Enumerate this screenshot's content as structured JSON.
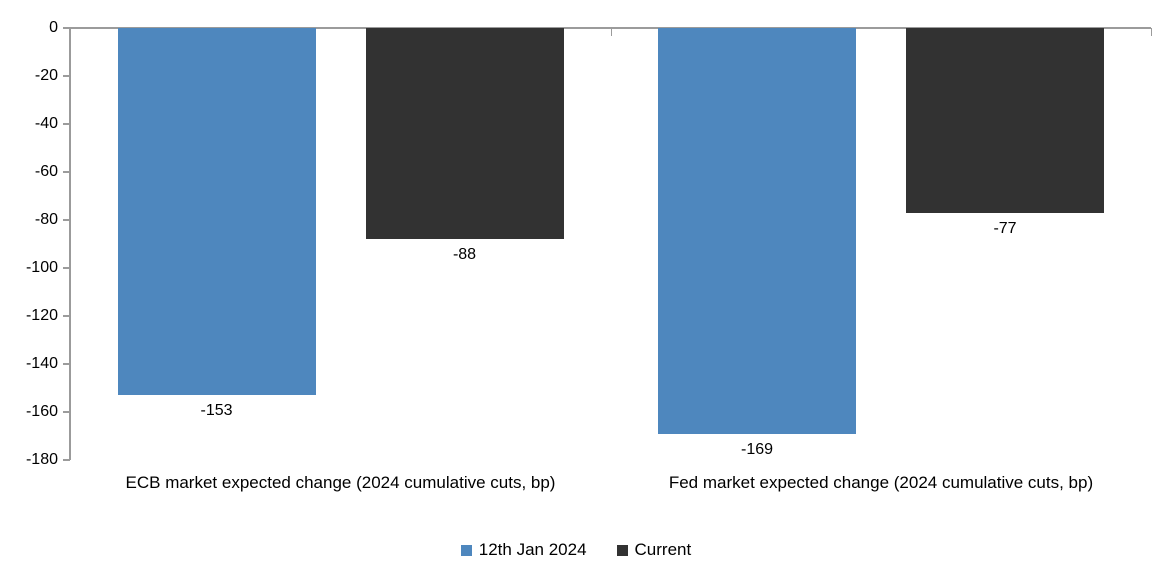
{
  "chart_data": {
    "type": "bar",
    "title": "",
    "categories": [
      "ECB market expected change (2024 cumulative cuts, bp)",
      "Fed market expected change (2024 cumulative cuts, bp)"
    ],
    "series": [
      {
        "name": "12th Jan 2024",
        "color": "#4e87be",
        "values": [
          -153,
          -169
        ],
        "data_labels": [
          "-153",
          "-169"
        ]
      },
      {
        "name": "Current",
        "color": "#323232",
        "values": [
          -88,
          -77
        ],
        "data_labels": [
          "-88",
          "-77"
        ]
      }
    ],
    "y_axis": {
      "min": -180,
      "max": 0,
      "step": 20,
      "tick_labels": [
        "0",
        "-20",
        "-40",
        "-60",
        "-80",
        "-100",
        "-120",
        "-140",
        "-160",
        "-180"
      ]
    },
    "xlabel": "",
    "ylabel": "",
    "grid": false,
    "legend_position": "bottom",
    "axis_color": "#9b9b9b",
    "text_color": "#000000",
    "background_color": "#ffffff"
  }
}
